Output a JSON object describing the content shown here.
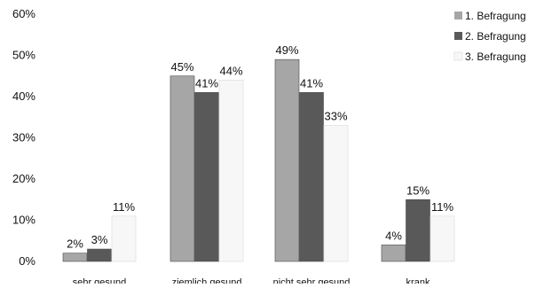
{
  "chart_data": {
    "type": "bar",
    "title": "",
    "xlabel": "",
    "ylabel": "",
    "categories": [
      "sehr gesund",
      "ziemlich gesund",
      "nicht sehr gesund",
      "krank"
    ],
    "series": [
      {
        "name": "1. Befragung",
        "values": [
          2,
          45,
          49,
          4
        ],
        "labels": [
          "2%",
          "45%",
          "49%",
          "4%"
        ],
        "color": "#a6a6a6"
      },
      {
        "name": "2. Befragung",
        "values": [
          3,
          41,
          41,
          15
        ],
        "labels": [
          "3%",
          "41%",
          "41%",
          "15%"
        ],
        "color": "#595959"
      },
      {
        "name": "3. Befragung",
        "values": [
          11,
          44,
          33,
          11
        ],
        "labels": [
          "11%",
          "44%",
          "33%",
          "11%"
        ],
        "color": "#f7f7f7"
      }
    ],
    "yticks": [
      0,
      10,
      20,
      30,
      40,
      50,
      60
    ],
    "ytick_labels": [
      "0%",
      "10%",
      "20%",
      "30%",
      "40%",
      "50%",
      "60%"
    ],
    "ylim": [
      0,
      60
    ],
    "grid": false,
    "legend_position": "top-right"
  }
}
